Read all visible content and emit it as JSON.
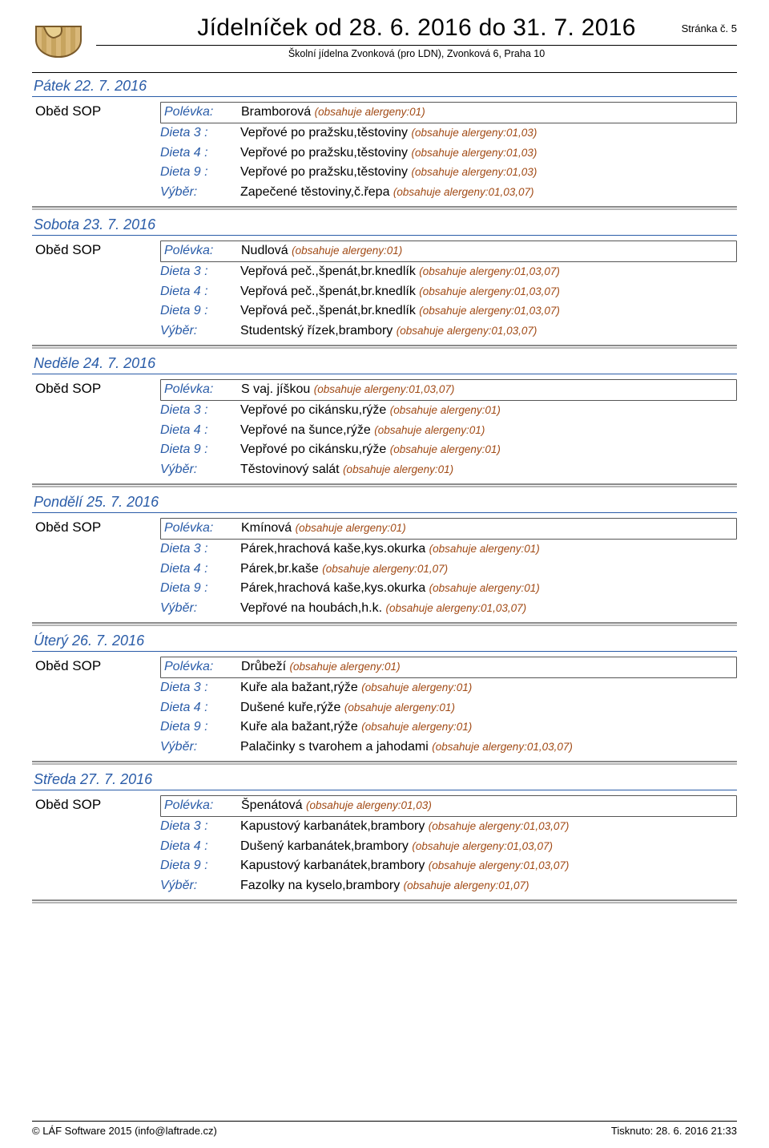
{
  "header": {
    "title": "Jídelníček  od 28. 6. 2016 do 31. 7. 2016",
    "subtitle": "Školní jídelna Zvonková (pro LDN), Zvonková 6, Praha 10",
    "page_label": "Stránka č. 5"
  },
  "labels": {
    "polevka": "Polévka:",
    "dieta3": "Dieta 3 :",
    "dieta4": "Dieta 4 :",
    "dieta9": "Dieta 9 :",
    "vyber": "Výběr:"
  },
  "meal_name": "Oběd SOP",
  "days": [
    {
      "title": "Pátek 22. 7. 2016",
      "rows": [
        {
          "k": "polevka",
          "dish": "Bramborová ",
          "allergen": "(obsahuje alergeny:01)"
        },
        {
          "k": "dieta3",
          "dish": "Vepřové po pražsku,těstoviny ",
          "allergen": "(obsahuje alergeny:01,03)"
        },
        {
          "k": "dieta4",
          "dish": "Vepřové po pražsku,těstoviny ",
          "allergen": "(obsahuje alergeny:01,03)"
        },
        {
          "k": "dieta9",
          "dish": "Vepřové po pražsku,těstoviny ",
          "allergen": "(obsahuje alergeny:01,03)"
        },
        {
          "k": "vyber",
          "dish": "Zapečené těstoviny,č.řepa ",
          "allergen": "(obsahuje alergeny:01,03,07)"
        }
      ]
    },
    {
      "title": "Sobota 23. 7. 2016",
      "rows": [
        {
          "k": "polevka",
          "dish": "Nudlová ",
          "allergen": "(obsahuje alergeny:01)"
        },
        {
          "k": "dieta3",
          "dish": "Vepřová peč.,špenát,br.knedlík ",
          "allergen": "(obsahuje alergeny:01,03,07)"
        },
        {
          "k": "dieta4",
          "dish": "Vepřová peč.,špenát,br.knedlík ",
          "allergen": "(obsahuje alergeny:01,03,07)"
        },
        {
          "k": "dieta9",
          "dish": "Vepřová peč.,špenát,br.knedlík ",
          "allergen": "(obsahuje alergeny:01,03,07)"
        },
        {
          "k": "vyber",
          "dish": "Studentský řízek,brambory ",
          "allergen": "(obsahuje alergeny:01,03,07)"
        }
      ]
    },
    {
      "title": "Neděle 24. 7. 2016",
      "rows": [
        {
          "k": "polevka",
          "dish": "S vaj. jíškou ",
          "allergen": "(obsahuje alergeny:01,03,07)"
        },
        {
          "k": "dieta3",
          "dish": "Vepřové po cikánsku,rýže ",
          "allergen": "(obsahuje alergeny:01)"
        },
        {
          "k": "dieta4",
          "dish": "Vepřové na šunce,rýže ",
          "allergen": "(obsahuje alergeny:01)"
        },
        {
          "k": "dieta9",
          "dish": "Vepřové po cikánsku,rýže ",
          "allergen": "(obsahuje alergeny:01)"
        },
        {
          "k": "vyber",
          "dish": "Těstovinový salát ",
          "allergen": "(obsahuje alergeny:01)"
        }
      ]
    },
    {
      "title": "Pondělí 25. 7. 2016",
      "rows": [
        {
          "k": "polevka",
          "dish": "Kmínová ",
          "allergen": "(obsahuje alergeny:01)"
        },
        {
          "k": "dieta3",
          "dish": "Párek,hrachová kaše,kys.okurka ",
          "allergen": "(obsahuje alergeny:01)"
        },
        {
          "k": "dieta4",
          "dish": "Párek,br.kaše ",
          "allergen": "(obsahuje alergeny:01,07)"
        },
        {
          "k": "dieta9",
          "dish": "Párek,hrachová kaše,kys.okurka ",
          "allergen": "(obsahuje alergeny:01)"
        },
        {
          "k": "vyber",
          "dish": "Vepřové na houbách,h.k. ",
          "allergen": "(obsahuje alergeny:01,03,07)"
        }
      ]
    },
    {
      "title": "Úterý 26. 7. 2016",
      "rows": [
        {
          "k": "polevka",
          "dish": "Drůbeží ",
          "allergen": "(obsahuje alergeny:01)"
        },
        {
          "k": "dieta3",
          "dish": "Kuře ala bažant,rýže ",
          "allergen": "(obsahuje alergeny:01)"
        },
        {
          "k": "dieta4",
          "dish": "Dušené kuře,rýže ",
          "allergen": "(obsahuje alergeny:01)"
        },
        {
          "k": "dieta9",
          "dish": "Kuře ala bažant,rýže ",
          "allergen": "(obsahuje alergeny:01)"
        },
        {
          "k": "vyber",
          "dish": "Palačinky s tvarohem a jahodami ",
          "allergen": "(obsahuje alergeny:01,03,07)"
        }
      ]
    },
    {
      "title": "Středa 27. 7. 2016",
      "rows": [
        {
          "k": "polevka",
          "dish": "Špenátová ",
          "allergen": "(obsahuje alergeny:01,03)"
        },
        {
          "k": "dieta3",
          "dish": "Kapustový karbanátek,brambory ",
          "allergen": "(obsahuje alergeny:01,03,07)"
        },
        {
          "k": "dieta4",
          "dish": "Dušený karbanátek,brambory ",
          "allergen": "(obsahuje alergeny:01,03,07)"
        },
        {
          "k": "dieta9",
          "dish": "Kapustový karbanátek,brambory ",
          "allergen": "(obsahuje alergeny:01,03,07)"
        },
        {
          "k": "vyber",
          "dish": "Fazolky na kyselo,brambory ",
          "allergen": "(obsahuje alergeny:01,07)"
        }
      ]
    }
  ],
  "footer": {
    "left": "© LÁF Software 2015 (info@laftrade.cz)",
    "right": "Tisknuto: 28. 6. 2016 21:33"
  },
  "colors": {
    "link_blue": "#2a5ca8",
    "allergen": "#a14a15",
    "text": "#000000",
    "rule": "#000000"
  }
}
